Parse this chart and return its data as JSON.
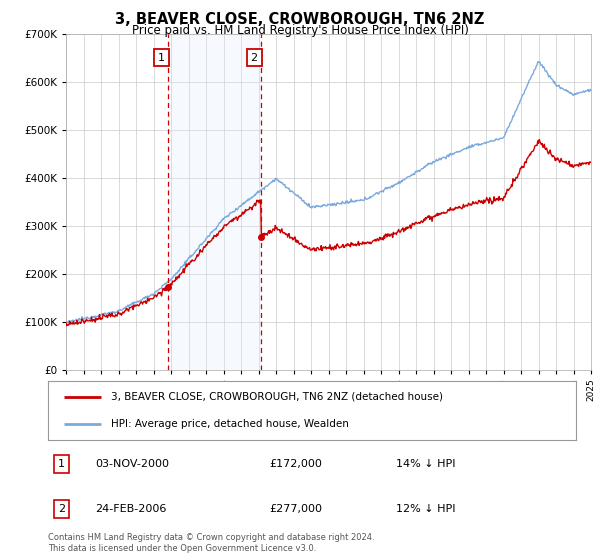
{
  "title": "3, BEAVER CLOSE, CROWBOROUGH, TN6 2NZ",
  "subtitle": "Price paid vs. HM Land Registry's House Price Index (HPI)",
  "legend_line1": "3, BEAVER CLOSE, CROWBOROUGH, TN6 2NZ (detached house)",
  "legend_line2": "HPI: Average price, detached house, Wealden",
  "annotation1_label": "1",
  "annotation1_date": "03-NOV-2000",
  "annotation1_price": "£172,000",
  "annotation1_hpi": "14% ↓ HPI",
  "annotation2_label": "2",
  "annotation2_date": "24-FEB-2006",
  "annotation2_price": "£277,000",
  "annotation2_hpi": "12% ↓ HPI",
  "footer": "Contains HM Land Registry data © Crown copyright and database right 2024.\nThis data is licensed under the Open Government Licence v3.0.",
  "hpi_color": "#7aaadd",
  "price_color": "#cc0000",
  "annotation_box_color": "#cc0000",
  "shaded_region_color": "#ddeeff",
  "ylim": [
    0,
    700000
  ],
  "yticks": [
    0,
    100000,
    200000,
    300000,
    400000,
    500000,
    600000,
    700000
  ],
  "ytick_labels": [
    "£0",
    "£100K",
    "£200K",
    "£300K",
    "£400K",
    "£500K",
    "£600K",
    "£700K"
  ],
  "x_start_year": 1995,
  "x_end_year": 2025,
  "sale1_year": 2000.84,
  "sale1_price": 172000,
  "sale2_year": 2006.15,
  "sale2_price": 277000,
  "background_color": "#ffffff",
  "grid_color": "#cccccc"
}
